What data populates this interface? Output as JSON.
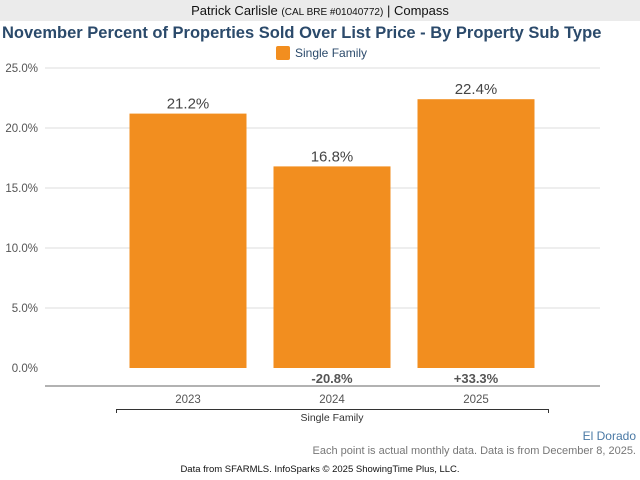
{
  "header": {
    "agent": "Patrick Carlisle",
    "license": "(CAL BRE #01040772)",
    "separator": "|",
    "brokerage": "Compass"
  },
  "chart_data": {
    "type": "bar",
    "title": "November Percent of Properties Sold Over List Price - By Property Sub Type",
    "categories": [
      "2023",
      "2024",
      "2025"
    ],
    "series": [
      {
        "name": "Single Family",
        "color": "#f28e1f",
        "values": [
          21.2,
          16.8,
          22.4
        ],
        "labels": [
          "21.2%",
          "16.8%",
          "22.4%"
        ]
      }
    ],
    "change_labels": [
      "",
      "-20.8%",
      "+33.3%"
    ],
    "group_label": "Single Family",
    "ylim": [
      0,
      25
    ],
    "yticks": [
      "0.0%",
      "5.0%",
      "10.0%",
      "15.0%",
      "20.0%",
      "25.0%"
    ],
    "grid": true,
    "legend": "top-center"
  },
  "location": "El Dorado",
  "note": "Each point is actual monthly data. Data is from December 8, 2025.",
  "footer": "Data from SFARMLS. InfoSparks © 2025 ShowingTime Plus, LLC."
}
